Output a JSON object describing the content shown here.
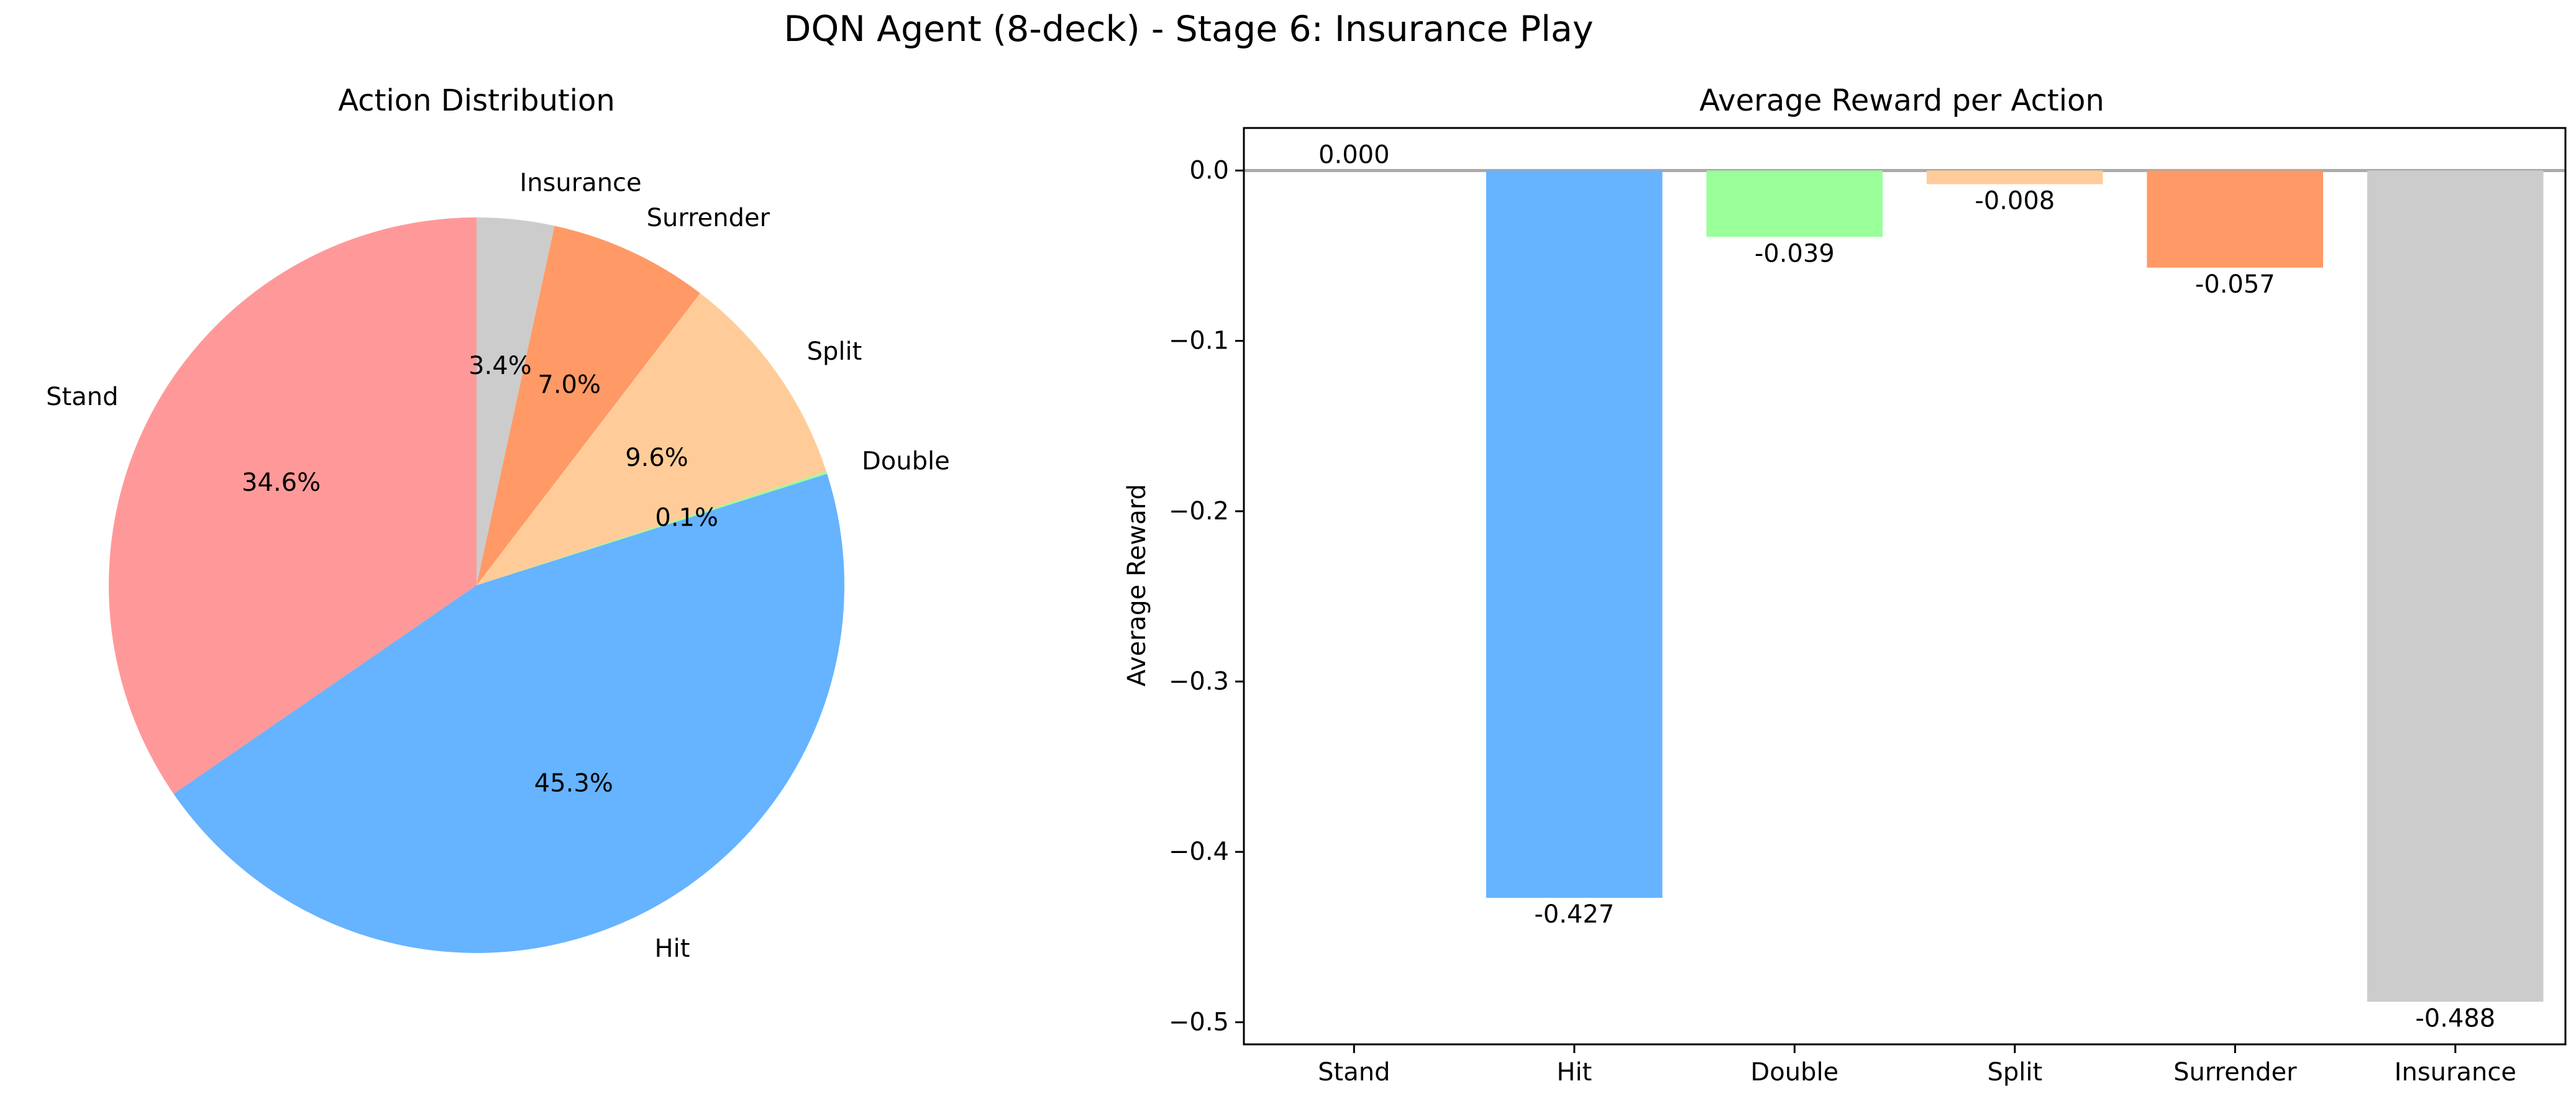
{
  "figure": {
    "suptitle": "DQN Agent (8-deck) - Stage 6: Insurance Play"
  },
  "chart_data": [
    {
      "type": "pie",
      "title": "Action Distribution",
      "start_angle_deg": 90,
      "direction": "counterclockwise",
      "slices": [
        {
          "label": "Stand",
          "value": 34.6,
          "pct_label": "34.6%",
          "color": "#ff9999"
        },
        {
          "label": "Hit",
          "value": 45.3,
          "pct_label": "45.3%",
          "color": "#66b3ff"
        },
        {
          "label": "Double",
          "value": 0.1,
          "pct_label": "0.1%",
          "color": "#99ff99"
        },
        {
          "label": "Split",
          "value": 9.6,
          "pct_label": "9.6%",
          "color": "#ffcc99"
        },
        {
          "label": "Surrender",
          "value": 7.0,
          "pct_label": "7.0%",
          "color": "#ff9966"
        },
        {
          "label": "Insurance",
          "value": 3.4,
          "pct_label": "3.4%",
          "color": "#cccccc"
        }
      ]
    },
    {
      "type": "bar",
      "title": "Average Reward per Action",
      "xlabel": "",
      "ylabel": "Average Reward",
      "categories": [
        "Stand",
        "Hit",
        "Double",
        "Split",
        "Surrender",
        "Insurance"
      ],
      "values": [
        0.0,
        -0.427,
        -0.039,
        -0.008,
        -0.057,
        -0.488
      ],
      "value_labels": [
        "0.000",
        "-0.427",
        "-0.039",
        "-0.008",
        "-0.057",
        "-0.488"
      ],
      "colors": [
        "#ff9999",
        "#66b3ff",
        "#99ff99",
        "#ffcc99",
        "#ff9966",
        "#cccccc"
      ],
      "ylim": [
        -0.513,
        0.025
      ],
      "yticks": [
        0.0,
        -0.1,
        -0.2,
        -0.3,
        -0.4,
        -0.5
      ],
      "ytick_labels": [
        "0.0",
        "−0.1",
        "−0.2",
        "−0.3",
        "−0.4",
        "−0.5"
      ],
      "zero_line": true,
      "zero_line_color": "#aaaaaa",
      "grid": false
    }
  ]
}
